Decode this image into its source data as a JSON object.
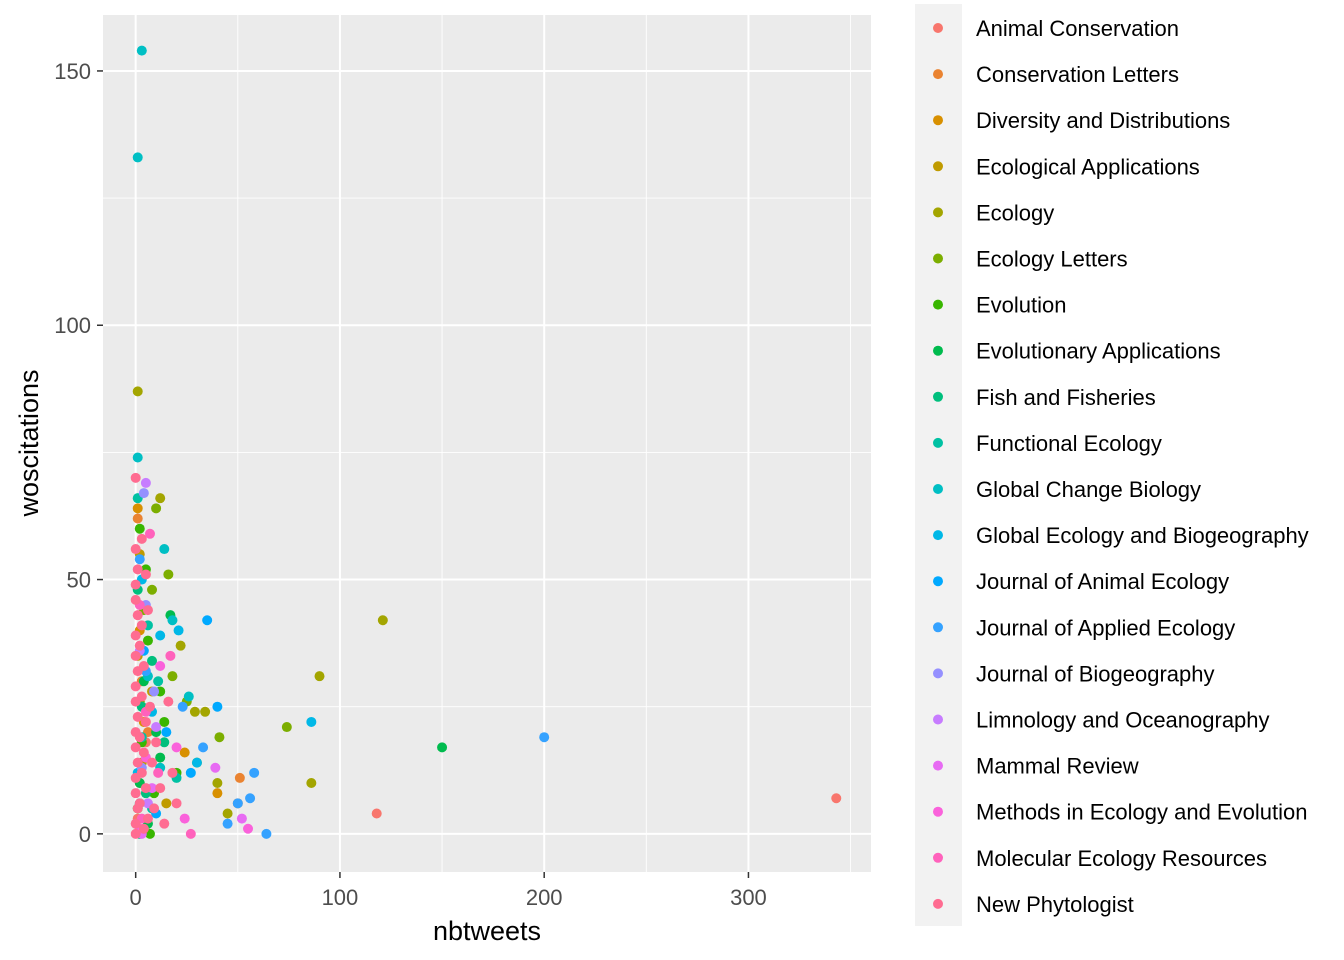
{
  "chart_data": {
    "type": "scatter",
    "title": "",
    "xlabel": "nbtweets",
    "ylabel": "woscitations",
    "xlim": [
      -16,
      360
    ],
    "ylim": [
      -7.5,
      161
    ],
    "x_ticks": [
      0,
      100,
      200,
      300
    ],
    "y_ticks": [
      0,
      50,
      100,
      150
    ],
    "grid": true,
    "legend_position": "right",
    "series": [
      {
        "name": "Animal Conservation",
        "color": "#F8766D",
        "points": [
          [
            118,
            4
          ],
          [
            343,
            7
          ],
          [
            2,
            10
          ],
          [
            5,
            18
          ],
          [
            1,
            3
          ]
        ]
      },
      {
        "name": "Conservation Letters",
        "color": "#EA8331",
        "points": [
          [
            51,
            11
          ],
          [
            50,
            6
          ],
          [
            3,
            30
          ],
          [
            1,
            62
          ],
          [
            6,
            20
          ]
        ]
      },
      {
        "name": "Diversity and Distributions",
        "color": "#D89000",
        "points": [
          [
            1,
            64
          ],
          [
            2,
            40
          ],
          [
            40,
            8
          ],
          [
            24,
            16
          ],
          [
            4,
            22
          ]
        ]
      },
      {
        "name": "Ecological Applications",
        "color": "#C09B00",
        "points": [
          [
            2,
            55
          ],
          [
            8,
            28
          ],
          [
            3,
            14
          ],
          [
            15,
            6
          ],
          [
            1,
            35
          ]
        ]
      },
      {
        "name": "Ecology",
        "color": "#A3A500",
        "points": [
          [
            1,
            87
          ],
          [
            12,
            66
          ],
          [
            90,
            31
          ],
          [
            121,
            42
          ],
          [
            86,
            10
          ],
          [
            34,
            24
          ],
          [
            29,
            24
          ],
          [
            40,
            10
          ],
          [
            45,
            4
          ],
          [
            22,
            37
          ]
        ]
      },
      {
        "name": "Ecology Letters",
        "color": "#7CAE00",
        "points": [
          [
            74,
            21
          ],
          [
            16,
            51
          ],
          [
            10,
            64
          ],
          [
            8,
            48
          ],
          [
            41,
            19
          ],
          [
            30,
            14
          ],
          [
            25,
            26
          ],
          [
            4,
            44
          ],
          [
            18,
            31
          ],
          [
            2,
            26
          ]
        ]
      },
      {
        "name": "Evolution",
        "color": "#39B600",
        "points": [
          [
            2,
            60
          ],
          [
            5,
            52
          ],
          [
            6,
            38
          ],
          [
            12,
            28
          ],
          [
            3,
            18
          ],
          [
            20,
            12
          ],
          [
            9,
            8
          ],
          [
            1,
            5
          ],
          [
            14,
            22
          ],
          [
            7,
            0
          ]
        ]
      },
      {
        "name": "Evolutionary Applications",
        "color": "#00BB4E",
        "points": [
          [
            150,
            17
          ],
          [
            17,
            43
          ],
          [
            4,
            30
          ],
          [
            10,
            20
          ],
          [
            2,
            10
          ],
          [
            6,
            2
          ],
          [
            12,
            15
          ]
        ]
      },
      {
        "name": "Fish and Fisheries",
        "color": "#00BF7D",
        "points": [
          [
            1,
            48
          ],
          [
            8,
            34
          ],
          [
            3,
            25
          ],
          [
            14,
            18
          ],
          [
            5,
            8
          ],
          [
            2,
            0
          ]
        ]
      },
      {
        "name": "Functional Ecology",
        "color": "#00C1A3",
        "points": [
          [
            1,
            66
          ],
          [
            6,
            41
          ],
          [
            11,
            30
          ],
          [
            3,
            19
          ],
          [
            20,
            11
          ],
          [
            8,
            5
          ]
        ]
      },
      {
        "name": "Global Change Biology",
        "color": "#00BFC4",
        "points": [
          [
            3,
            154
          ],
          [
            1,
            133
          ],
          [
            1,
            74
          ],
          [
            14,
            56
          ],
          [
            26,
            27
          ],
          [
            18,
            42
          ],
          [
            6,
            31
          ],
          [
            12,
            13
          ],
          [
            2,
            6
          ]
        ]
      },
      {
        "name": "Global Ecology and Biogeography",
        "color": "#00B8E7",
        "points": [
          [
            86,
            22
          ],
          [
            21,
            40
          ],
          [
            12,
            39
          ],
          [
            30,
            14
          ],
          [
            8,
            24
          ],
          [
            3,
            50
          ],
          [
            1,
            12
          ]
        ]
      },
      {
        "name": "Journal of Animal Ecology",
        "color": "#00A9FF",
        "points": [
          [
            35,
            42
          ],
          [
            40,
            25
          ],
          [
            27,
            12
          ],
          [
            10,
            4
          ],
          [
            4,
            36
          ],
          [
            15,
            20
          ]
        ]
      },
      {
        "name": "Journal of Applied Ecology",
        "color": "#35A2FF",
        "points": [
          [
            200,
            19
          ],
          [
            64,
            0
          ],
          [
            58,
            12
          ],
          [
            56,
            7
          ],
          [
            50,
            6
          ],
          [
            45,
            2
          ],
          [
            33,
            17
          ],
          [
            23,
            25
          ],
          [
            2,
            54
          ],
          [
            5,
            32
          ]
        ]
      },
      {
        "name": "Journal of Biogeography",
        "color": "#9590FF",
        "points": [
          [
            4,
            67
          ],
          [
            5,
            45
          ],
          [
            9,
            28
          ],
          [
            3,
            13
          ]
        ]
      },
      {
        "name": "Limnology and Oceanography",
        "color": "#C77CFF",
        "points": [
          [
            5,
            69
          ],
          [
            2,
            36
          ],
          [
            10,
            21
          ],
          [
            6,
            6
          ]
        ]
      },
      {
        "name": "Mammal Review",
        "color": "#E76BF3",
        "points": [
          [
            39,
            13
          ],
          [
            52,
            3
          ],
          [
            8,
            9
          ],
          [
            3,
            0
          ]
        ]
      },
      {
        "name": "Methods in Ecology and Evolution",
        "color": "#FA62DB",
        "points": [
          [
            55,
            1
          ],
          [
            12,
            33
          ],
          [
            20,
            17
          ],
          [
            5,
            15
          ],
          [
            2,
            1
          ],
          [
            24,
            3
          ]
        ]
      },
      {
        "name": "Molecular Ecology Resources",
        "color": "#FF62BC",
        "points": [
          [
            7,
            59
          ],
          [
            2,
            45
          ],
          [
            17,
            35
          ],
          [
            5,
            24
          ],
          [
            11,
            12
          ],
          [
            3,
            3
          ],
          [
            27,
            0
          ]
        ]
      },
      {
        "name": "New Phytologist",
        "color": "#FF6C91",
        "points": [
          [
            0,
            70
          ],
          [
            0,
            56
          ],
          [
            1,
            52
          ],
          [
            0,
            49
          ],
          [
            0,
            46
          ],
          [
            1,
            43
          ],
          [
            0,
            39
          ],
          [
            0,
            35
          ],
          [
            1,
            32
          ],
          [
            0,
            29
          ],
          [
            0,
            26
          ],
          [
            1,
            23
          ],
          [
            0,
            20
          ],
          [
            0,
            17
          ],
          [
            1,
            14
          ],
          [
            0,
            11
          ],
          [
            0,
            8
          ],
          [
            1,
            5
          ],
          [
            0,
            2
          ],
          [
            0,
            0
          ],
          [
            3,
            41
          ],
          [
            2,
            37
          ],
          [
            4,
            33
          ],
          [
            3,
            27
          ],
          [
            5,
            22
          ],
          [
            2,
            19
          ],
          [
            4,
            16
          ],
          [
            3,
            12
          ],
          [
            5,
            9
          ],
          [
            2,
            6
          ],
          [
            6,
            3
          ],
          [
            4,
            1
          ],
          [
            7,
            25
          ],
          [
            8,
            14
          ],
          [
            9,
            5
          ],
          [
            10,
            18
          ],
          [
            12,
            9
          ],
          [
            14,
            2
          ],
          [
            16,
            26
          ],
          [
            18,
            12
          ],
          [
            20,
            6
          ],
          [
            6,
            44
          ],
          [
            5,
            51
          ],
          [
            3,
            58
          ]
        ]
      }
    ]
  }
}
